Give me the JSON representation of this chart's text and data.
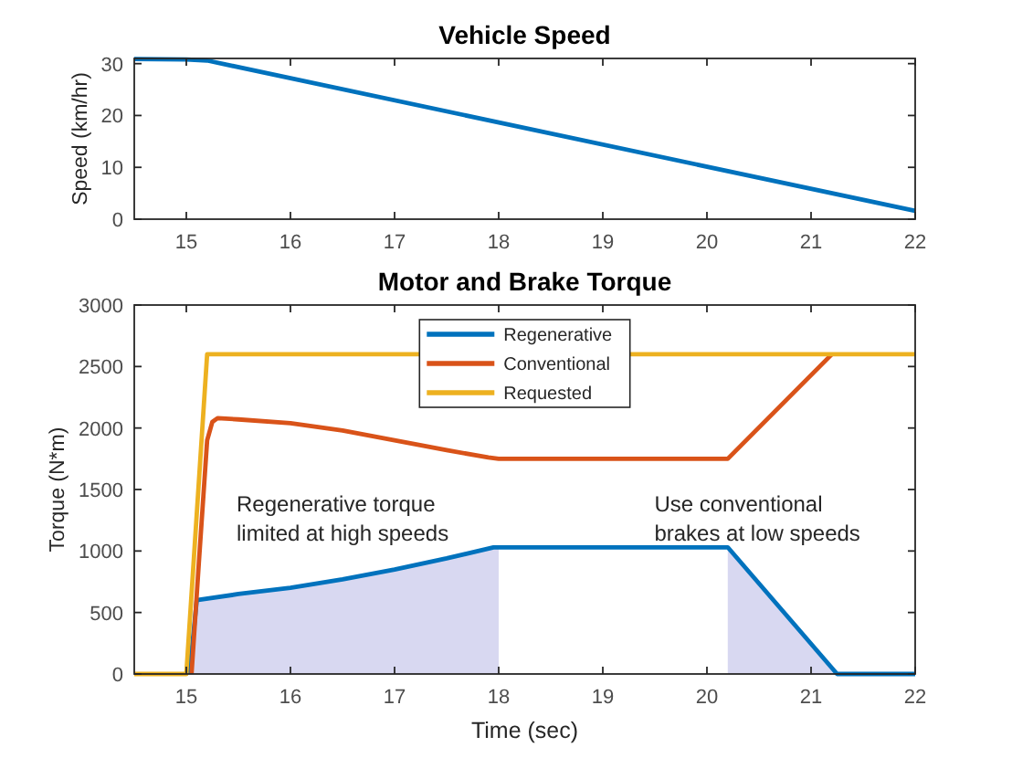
{
  "chart_data": [
    {
      "type": "line",
      "title": "Vehicle Speed",
      "ylabel": "Speed (km/hr)",
      "xlim": [
        14.5,
        22
      ],
      "xticks": [
        15,
        16,
        17,
        18,
        19,
        20,
        21,
        22
      ],
      "ylim": [
        0,
        31
      ],
      "yticks": [
        0,
        10,
        20,
        30
      ],
      "series": [
        {
          "color": "#0072bd",
          "x": [
            14.5,
            15,
            15.2,
            22
          ],
          "values": [
            30.9,
            30.8,
            30.6,
            1.6
          ]
        }
      ]
    },
    {
      "type": "line",
      "title": "Motor and Brake Torque",
      "xlabel": "Time (sec)",
      "ylabel": "Torque (N*m)",
      "xlim": [
        14.5,
        22
      ],
      "xticks": [
        15,
        16,
        17,
        18,
        19,
        20,
        21,
        22
      ],
      "ylim": [
        0,
        3000
      ],
      "yticks": [
        0,
        500,
        1000,
        1500,
        2000,
        2500,
        3000
      ],
      "legend": "top",
      "annotations": [
        "Regenerative torque\nlimited at high speeds",
        "Use conventional\nbrakes at low speeds"
      ],
      "series": [
        {
          "type": "area",
          "color": "#d8d8f1",
          "x": [
            15.03,
            15.1,
            15.5,
            16,
            16.5,
            17,
            17.5,
            17.95,
            18,
            19,
            20.2,
            21.25
          ],
          "values": [
            0,
            600,
            650,
            700,
            770,
            850,
            940,
            1030,
            1030,
            null,
            1030,
            0
          ]
        },
        {
          "name": "Regenerative",
          "color": "#0072bd",
          "x": [
            15.03,
            15.1,
            15.5,
            16,
            16.5,
            17,
            17.5,
            17.95,
            20.2,
            21.25,
            22
          ],
          "values": [
            0,
            600,
            650,
            700,
            770,
            850,
            940,
            1030,
            1030,
            0,
            0
          ]
        },
        {
          "name": "Conventional",
          "color": "#d95319",
          "x": [
            15.05,
            15.12,
            15.2,
            15.25,
            15.3,
            15.5,
            16,
            16.5,
            17,
            17.5,
            17.9,
            18,
            20.2,
            21.2
          ],
          "values": [
            0,
            900,
            1900,
            2050,
            2080,
            2070,
            2040,
            1980,
            1900,
            1820,
            1760,
            1750,
            1750,
            2600
          ]
        },
        {
          "name": "Requested",
          "color": "#edb120",
          "x": [
            14.5,
            15,
            15.2,
            22
          ],
          "values": [
            0,
            0,
            2600,
            2600
          ]
        }
      ]
    }
  ]
}
